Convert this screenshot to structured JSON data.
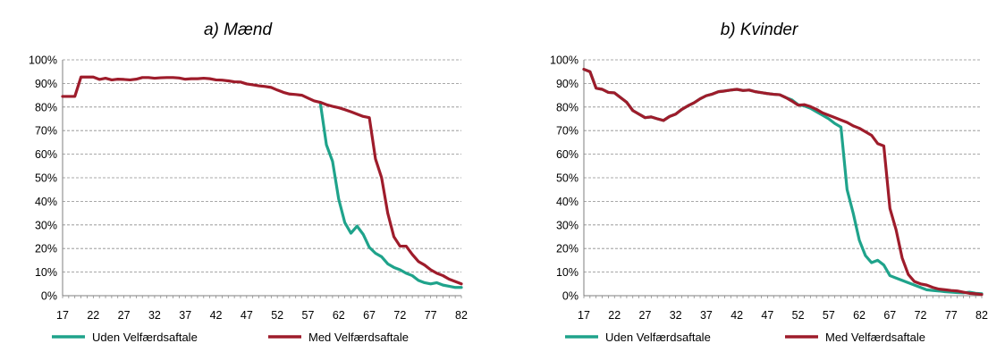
{
  "chart_data": [
    {
      "type": "line",
      "title": "a) Mænd",
      "xlabel": "",
      "ylabel": "",
      "xlim": [
        17,
        82
      ],
      "ylim": [
        0,
        100
      ],
      "x_ticks": [
        "17",
        "22",
        "27",
        "32",
        "37",
        "42",
        "47",
        "52",
        "57",
        "62",
        "67",
        "72",
        "77",
        "82"
      ],
      "y_ticks": [
        "0%",
        "10%",
        "20%",
        "30%",
        "40%",
        "50%",
        "60%",
        "70%",
        "80%",
        "90%",
        "100%"
      ],
      "grid": "horizontal-dashed",
      "legend": "bottom",
      "series": [
        {
          "name": "Uden Velfærdsaftale",
          "color": "#1fa38b",
          "x": [
            59,
            60,
            61,
            62,
            63,
            64,
            65,
            66,
            67,
            68,
            69,
            70,
            71,
            72,
            73,
            74,
            75,
            76,
            77,
            78,
            79,
            80,
            81,
            82
          ],
          "values": [
            82,
            64,
            57,
            41,
            31,
            26.5,
            29.5,
            26,
            20.5,
            18,
            16.5,
            13.5,
            12,
            11,
            9.5,
            8.5,
            6.5,
            5.5,
            5,
            5.5,
            4.5,
            4,
            3.5,
            3.5
          ]
        },
        {
          "name": "Med Velfærdsaftale",
          "color": "#9e1c2b",
          "x": [
            17,
            18,
            19,
            20,
            21,
            22,
            23,
            24,
            25,
            26,
            27,
            28,
            29,
            30,
            31,
            32,
            33,
            34,
            35,
            36,
            37,
            38,
            39,
            40,
            41,
            42,
            43,
            44,
            45,
            46,
            47,
            48,
            49,
            50,
            51,
            52,
            53,
            54,
            55,
            56,
            57,
            58,
            59,
            60,
            61,
            62,
            63,
            64,
            65,
            66,
            67,
            68,
            69,
            70,
            71,
            72,
            73,
            74,
            75,
            76,
            77,
            78,
            79,
            80,
            81,
            82
          ],
          "values": [
            84.5,
            84.5,
            84.5,
            92.7,
            92.7,
            92.7,
            91.7,
            92.2,
            91.5,
            91.8,
            91.7,
            91.5,
            91.8,
            92.5,
            92.5,
            92.2,
            92.4,
            92.5,
            92.5,
            92.3,
            91.8,
            92,
            92,
            92.2,
            92,
            91.5,
            91.4,
            91.1,
            90.7,
            90.6,
            89.8,
            89.4,
            89,
            88.7,
            88.3,
            87.2,
            86.2,
            85.5,
            85.3,
            85,
            83.8,
            82.6,
            82,
            81,
            80.3,
            79.7,
            78.9,
            78,
            77,
            76,
            75.5,
            58,
            50,
            35,
            25,
            21,
            21,
            17.5,
            14.5,
            13,
            11,
            9.5,
            8.5,
            7,
            6,
            5
          ]
        }
      ]
    },
    {
      "type": "line",
      "title": "b) Kvinder",
      "xlabel": "",
      "ylabel": "",
      "xlim": [
        17,
        82
      ],
      "ylim": [
        0,
        100
      ],
      "x_ticks": [
        "17",
        "22",
        "27",
        "32",
        "37",
        "42",
        "47",
        "52",
        "57",
        "62",
        "67",
        "72",
        "77",
        "82"
      ],
      "y_ticks": [
        "0%",
        "10%",
        "20%",
        "30%",
        "40%",
        "50%",
        "60%",
        "70%",
        "80%",
        "90%",
        "100%"
      ],
      "grid": "horizontal-dashed",
      "legend": "bottom",
      "series": [
        {
          "name": "Uden Velfærdsaftale",
          "color": "#1fa38b",
          "x": [
            17,
            18,
            19,
            20,
            21,
            22,
            23,
            24,
            25,
            26,
            27,
            28,
            29,
            30,
            31,
            32,
            33,
            34,
            35,
            36,
            37,
            38,
            39,
            40,
            41,
            42,
            43,
            44,
            45,
            46,
            47,
            48,
            49,
            50,
            51,
            52,
            53,
            54,
            55,
            56,
            57,
            58,
            59,
            60,
            61,
            62,
            63,
            64,
            65,
            66,
            67,
            68,
            69,
            70,
            71,
            72,
            73,
            74,
            75,
            76,
            77,
            78,
            79,
            80,
            81,
            82
          ],
          "values": [
            96,
            95,
            88,
            87.5,
            86.2,
            86,
            84,
            82,
            78.5,
            77,
            75.5,
            75.8,
            75,
            74.3,
            76,
            77,
            79,
            80.5,
            81.8,
            83.5,
            84.8,
            85.5,
            86.5,
            86.8,
            87.2,
            87.5,
            87,
            87.2,
            86.5,
            86.1,
            85.7,
            85.4,
            85.2,
            84,
            83,
            81,
            80.5,
            79.5,
            78,
            76.5,
            75,
            73,
            71.5,
            45,
            35,
            23.5,
            17,
            14,
            15,
            13,
            8.5,
            7.5,
            6.5,
            5.5,
            4.5,
            3.5,
            2.5,
            2.2,
            2,
            1.7,
            1.5,
            1.3,
            1.2,
            1.5,
            1,
            0.8
          ]
        },
        {
          "name": "Med Velfærdsaftale",
          "color": "#9e1c2b",
          "x": [
            17,
            18,
            19,
            20,
            21,
            22,
            23,
            24,
            25,
            26,
            27,
            28,
            29,
            30,
            31,
            32,
            33,
            34,
            35,
            36,
            37,
            38,
            39,
            40,
            41,
            42,
            43,
            44,
            45,
            46,
            47,
            48,
            49,
            50,
            51,
            52,
            53,
            54,
            55,
            56,
            57,
            58,
            59,
            60,
            61,
            62,
            63,
            64,
            65,
            66,
            67,
            68,
            69,
            70,
            71,
            72,
            73,
            74,
            75,
            76,
            77,
            78,
            79,
            80,
            81,
            82
          ],
          "values": [
            96,
            95,
            88,
            87.5,
            86.2,
            86,
            84,
            82,
            78.5,
            77,
            75.5,
            75.8,
            75,
            74.3,
            76,
            77,
            79,
            80.5,
            81.8,
            83.5,
            84.8,
            85.5,
            86.5,
            86.8,
            87.2,
            87.5,
            87,
            87.2,
            86.5,
            86.1,
            85.7,
            85.4,
            85.2,
            84,
            82.5,
            80.8,
            81,
            80.2,
            79,
            77.5,
            76.5,
            75.5,
            74.5,
            73.5,
            72,
            71,
            69.5,
            68,
            64.5,
            63.5,
            37,
            28,
            16,
            9,
            6,
            5,
            4.5,
            3.5,
            2.8,
            2.5,
            2.2,
            2,
            1.5,
            1,
            0.8,
            0.5
          ]
        }
      ]
    }
  ]
}
